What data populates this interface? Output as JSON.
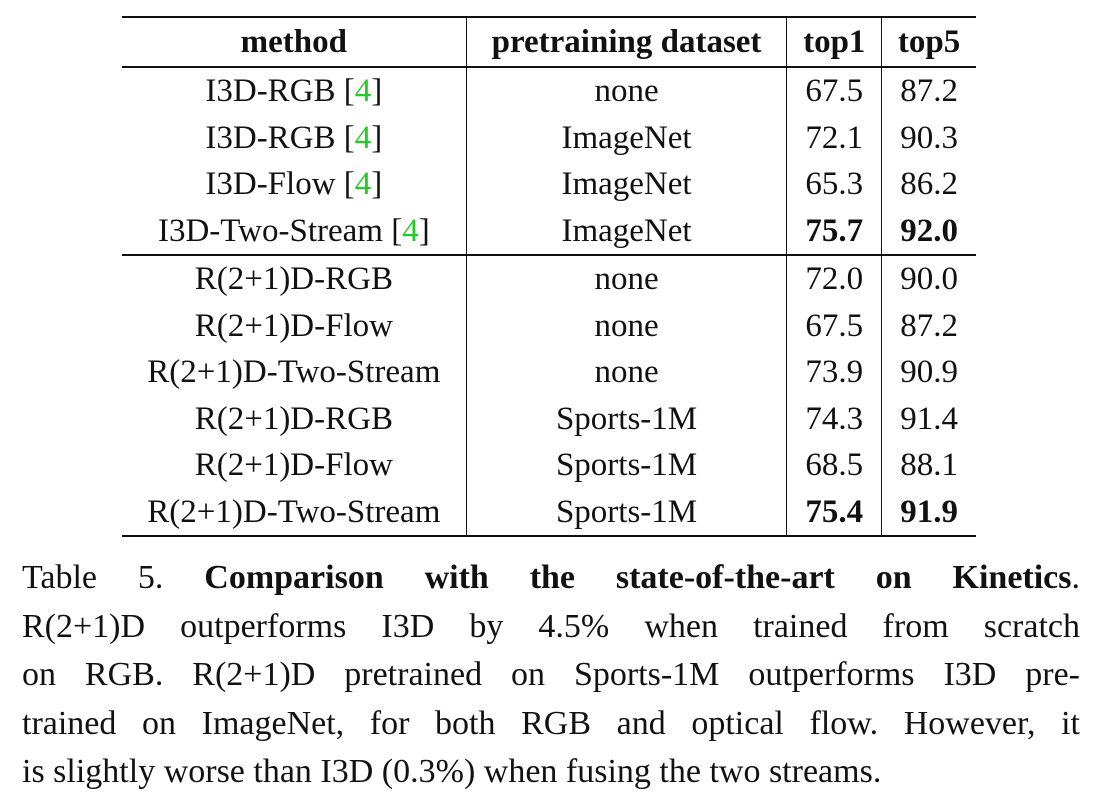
{
  "table": {
    "headers": [
      "method",
      "pretraining dataset",
      "top1",
      "top5"
    ],
    "groups": [
      [
        {
          "method": "I3D-RGB",
          "cite": "4",
          "dataset": "none",
          "top1": "67.5",
          "top5": "87.2",
          "bold": false
        },
        {
          "method": "I3D-RGB",
          "cite": "4",
          "dataset": "ImageNet",
          "top1": "72.1",
          "top5": "90.3",
          "bold": false
        },
        {
          "method": "I3D-Flow",
          "cite": "4",
          "dataset": "ImageNet",
          "top1": "65.3",
          "top5": "86.2",
          "bold": false
        },
        {
          "method": "I3D-Two-Stream",
          "cite": "4",
          "dataset": "ImageNet",
          "top1": "75.7",
          "top5": "92.0",
          "bold": true
        }
      ],
      [
        {
          "method": "R(2+1)D-RGB",
          "cite": "",
          "dataset": "none",
          "top1": "72.0",
          "top5": "90.0",
          "bold": false
        },
        {
          "method": "R(2+1)D-Flow",
          "cite": "",
          "dataset": "none",
          "top1": "67.5",
          "top5": "87.2",
          "bold": false
        },
        {
          "method": "R(2+1)D-Two-Stream",
          "cite": "",
          "dataset": "none",
          "top1": "73.9",
          "top5": "90.9",
          "bold": false
        },
        {
          "method": "R(2+1)D-RGB",
          "cite": "",
          "dataset": "Sports-1M",
          "top1": "74.3",
          "top5": "91.4",
          "bold": false
        },
        {
          "method": "R(2+1)D-Flow",
          "cite": "",
          "dataset": "Sports-1M",
          "top1": "68.5",
          "top5": "88.1",
          "bold": false
        },
        {
          "method": "R(2+1)D-Two-Stream",
          "cite": "",
          "dataset": "Sports-1M",
          "top1": "75.4",
          "top5": "91.9",
          "bold": true
        }
      ]
    ]
  },
  "caption": {
    "label": "Table 5.",
    "title": "Comparison with the state-of-the-art on Kinetics",
    "lines": [
      "R(2+1)D outperforms I3D by 4.5% when trained from scratch",
      "on RGB. R(2+1)D pretrained on Sports-1M outperforms I3D pre-",
      "trained on ImageNet, for both RGB and optical flow. However, it",
      "is slightly worse than I3D (0.3%) when fusing the two streams."
    ]
  }
}
